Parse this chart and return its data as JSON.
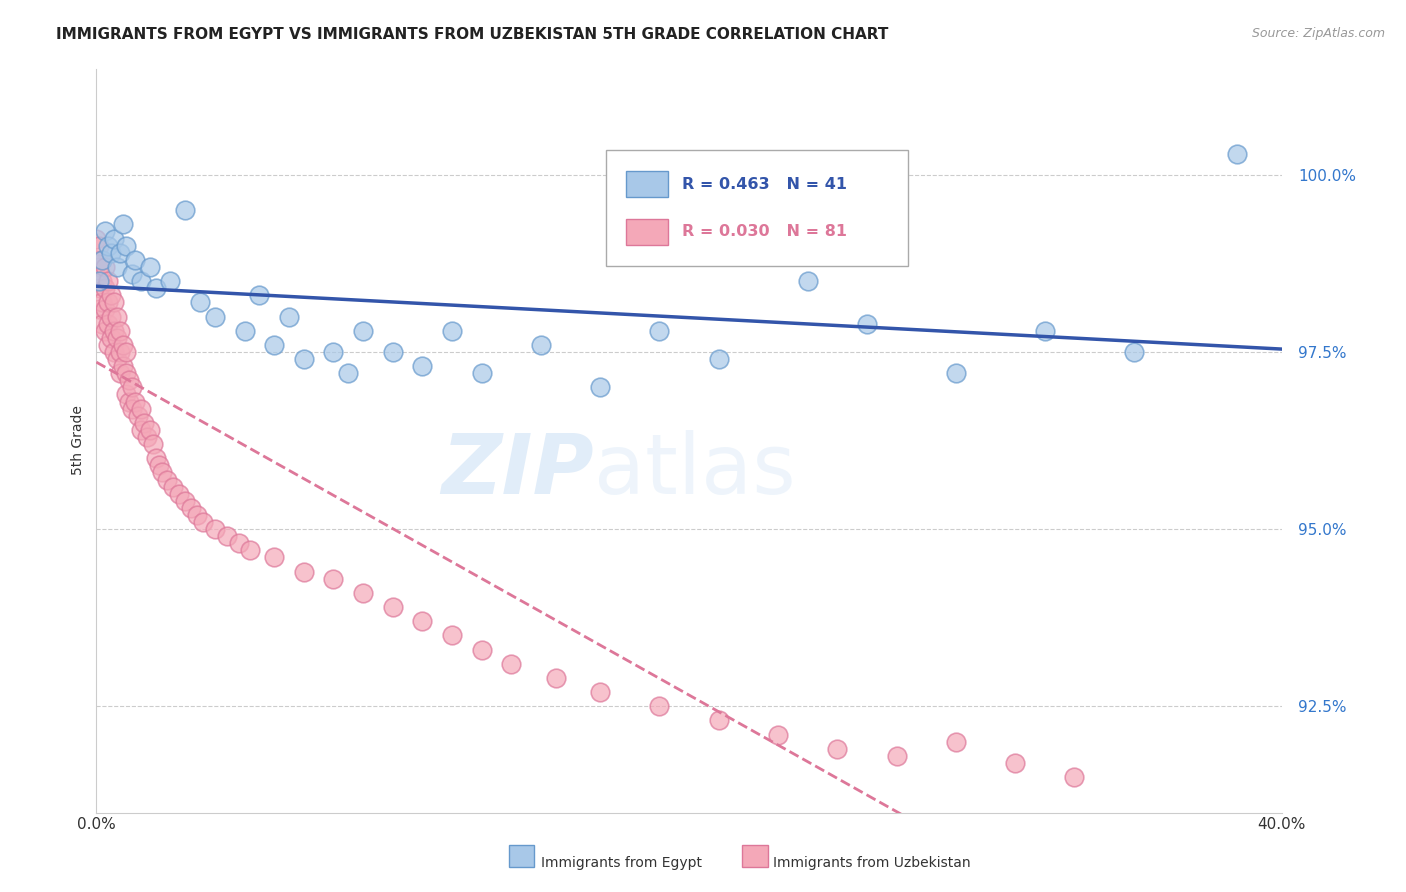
{
  "title": "IMMIGRANTS FROM EGYPT VS IMMIGRANTS FROM UZBEKISTAN 5TH GRADE CORRELATION CHART",
  "source": "Source: ZipAtlas.com",
  "ylabel": "5th Grade",
  "yticks": [
    92.5,
    95.0,
    97.5,
    100.0
  ],
  "ytick_labels": [
    "92.5%",
    "95.0%",
    "97.5%",
    "100.0%"
  ],
  "xlim": [
    0.0,
    0.4
  ],
  "ylim": [
    91.0,
    101.5
  ],
  "egypt_color": "#A8C8E8",
  "uzbekistan_color": "#F4A8B8",
  "egypt_edge": "#6699CC",
  "uzbekistan_edge": "#DD7799",
  "egypt_line_color": "#3355AA",
  "uzbekistan_line_color": "#DD7799",
  "egypt_R": 0.463,
  "egypt_N": 41,
  "uzbekistan_R": 0.03,
  "uzbekistan_N": 81,
  "egypt_x": [
    0.001,
    0.002,
    0.003,
    0.004,
    0.005,
    0.006,
    0.007,
    0.008,
    0.009,
    0.01,
    0.012,
    0.013,
    0.015,
    0.018,
    0.02,
    0.025,
    0.03,
    0.035,
    0.04,
    0.05,
    0.055,
    0.06,
    0.065,
    0.07,
    0.08,
    0.085,
    0.09,
    0.1,
    0.11,
    0.12,
    0.13,
    0.15,
    0.17,
    0.19,
    0.21,
    0.24,
    0.26,
    0.29,
    0.32,
    0.35,
    0.385
  ],
  "egypt_y": [
    98.5,
    98.8,
    99.2,
    99.0,
    98.9,
    99.1,
    98.7,
    98.9,
    99.3,
    99.0,
    98.6,
    98.8,
    98.5,
    98.7,
    98.4,
    98.5,
    99.5,
    98.2,
    98.0,
    97.8,
    98.3,
    97.6,
    98.0,
    97.4,
    97.5,
    97.2,
    97.8,
    97.5,
    97.3,
    97.8,
    97.2,
    97.6,
    97.0,
    97.8,
    97.4,
    98.5,
    97.9,
    97.2,
    97.8,
    97.5,
    100.3
  ],
  "uzbekistan_x": [
    0.0,
    0.0,
    0.0,
    0.001,
    0.001,
    0.001,
    0.001,
    0.002,
    0.002,
    0.002,
    0.002,
    0.003,
    0.003,
    0.003,
    0.003,
    0.004,
    0.004,
    0.004,
    0.004,
    0.005,
    0.005,
    0.005,
    0.006,
    0.006,
    0.006,
    0.007,
    0.007,
    0.007,
    0.008,
    0.008,
    0.008,
    0.009,
    0.009,
    0.01,
    0.01,
    0.01,
    0.011,
    0.011,
    0.012,
    0.012,
    0.013,
    0.014,
    0.015,
    0.015,
    0.016,
    0.017,
    0.018,
    0.019,
    0.02,
    0.021,
    0.022,
    0.024,
    0.026,
    0.028,
    0.03,
    0.032,
    0.034,
    0.036,
    0.04,
    0.044,
    0.048,
    0.052,
    0.06,
    0.07,
    0.08,
    0.09,
    0.1,
    0.11,
    0.12,
    0.13,
    0.14,
    0.155,
    0.17,
    0.19,
    0.21,
    0.23,
    0.25,
    0.27,
    0.29,
    0.31,
    0.33
  ],
  "uzbekistan_y": [
    99.1,
    98.8,
    98.5,
    99.0,
    98.7,
    98.4,
    98.1,
    98.8,
    98.5,
    98.2,
    97.9,
    98.7,
    98.4,
    98.1,
    97.8,
    98.5,
    98.2,
    97.9,
    97.6,
    98.3,
    98.0,
    97.7,
    98.2,
    97.8,
    97.5,
    98.0,
    97.7,
    97.4,
    97.8,
    97.5,
    97.2,
    97.6,
    97.3,
    97.5,
    97.2,
    96.9,
    97.1,
    96.8,
    97.0,
    96.7,
    96.8,
    96.6,
    96.7,
    96.4,
    96.5,
    96.3,
    96.4,
    96.2,
    96.0,
    95.9,
    95.8,
    95.7,
    95.6,
    95.5,
    95.4,
    95.3,
    95.2,
    95.1,
    95.0,
    94.9,
    94.8,
    94.7,
    94.6,
    94.4,
    94.3,
    94.1,
    93.9,
    93.7,
    93.5,
    93.3,
    93.1,
    92.9,
    92.7,
    92.5,
    92.3,
    92.1,
    91.9,
    91.8,
    92.0,
    91.7,
    91.5
  ],
  "background_color": "#FFFFFF",
  "grid_color": "#CCCCCC",
  "watermark": "ZIPatlas",
  "source_color": "#999999"
}
